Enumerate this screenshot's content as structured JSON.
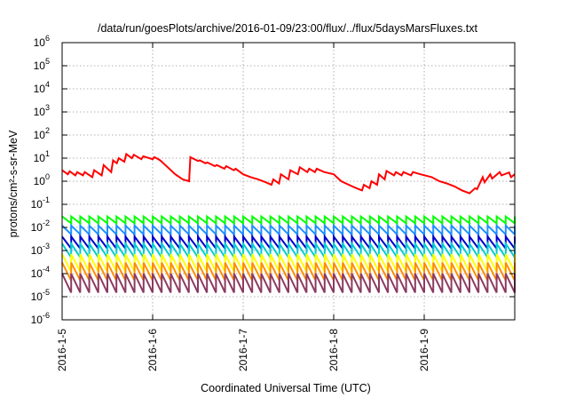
{
  "chart_data": {
    "type": "line",
    "title": "/data/run/goesPlots/archive/2016-01-09/23:00/flux/../flux/5daysMarsFluxes.txt",
    "xlabel": "Coordinated Universal Time (UTC)",
    "ylabel": "protons/cm²-s-sr-MeV",
    "yscale": "log",
    "ylim": [
      1e-06,
      1000000.0
    ],
    "xlim": [
      "2016-1-5",
      "2016-1-10"
    ],
    "grid": true,
    "legend": "none",
    "x_ticks": [
      "2016-1-5",
      "2016-1-6",
      "2016-1-7",
      "2016-1-8",
      "2016-1-9"
    ],
    "y_ticks": [
      {
        "base": "10",
        "exp": "-6"
      },
      {
        "base": "10",
        "exp": "-5"
      },
      {
        "base": "10",
        "exp": "-4"
      },
      {
        "base": "10",
        "exp": "-3"
      },
      {
        "base": "10",
        "exp": "-2"
      },
      {
        "base": "10",
        "exp": "-1"
      },
      {
        "base": "10",
        "exp": "0"
      },
      {
        "base": "10",
        "exp": "1"
      },
      {
        "base": "10",
        "exp": "2"
      },
      {
        "base": "10",
        "exp": "3"
      },
      {
        "base": "10",
        "exp": "4"
      },
      {
        "base": "10",
        "exp": "5"
      },
      {
        "base": "10",
        "exp": "6"
      }
    ],
    "series": [
      {
        "color": "#ff0000",
        "x": [
          "2016-01-05 00:00",
          "2016-01-05 01:30",
          "2016-01-05 02:00",
          "2016-01-05 03:30",
          "2016-01-05 04:00",
          "2016-01-05 05:30",
          "2016-01-05 06:00",
          "2016-01-05 08:00",
          "2016-01-05 08:30",
          "2016-01-05 10:30",
          "2016-01-05 11:00",
          "2016-01-05 13:00",
          "2016-01-05 13:30",
          "2016-01-05 14:30",
          "2016-01-05 15:00",
          "2016-01-05 16:30",
          "2016-01-05 17:00",
          "2016-01-05 18:30",
          "2016-01-05 19:00",
          "2016-01-05 21:00",
          "2016-01-05 21:30",
          "2016-01-06 00:00",
          "2016-01-06 00:30",
          "2016-01-06 02:00",
          "2016-01-06 04:00",
          "2016-01-06 06:00",
          "2016-01-06 08:00",
          "2016-01-06 09:40",
          "2016-01-06 10:00",
          "2016-01-06 12:00",
          "2016-01-06 12:30",
          "2016-01-06 14:00",
          "2016-01-06 14:30",
          "2016-01-06 16:30",
          "2016-01-06 17:00",
          "2016-01-06 19:00",
          "2016-01-06 19:30",
          "2016-01-06 21:30",
          "2016-01-06 22:00",
          "2016-01-07 00:00",
          "2016-01-07 02:00",
          "2016-01-07 04:00",
          "2016-01-07 06:00",
          "2016-01-07 07:30",
          "2016-01-07 08:00",
          "2016-01-07 09:30",
          "2016-01-07 10:00",
          "2016-01-07 12:00",
          "2016-01-07 12:30",
          "2016-01-07 14:30",
          "2016-01-07 15:00",
          "2016-01-07 17:00",
          "2016-01-07 17:30",
          "2016-01-07 19:00",
          "2016-01-07 19:30",
          "2016-01-07 21:30",
          "2016-01-08 00:00",
          "2016-01-08 02:00",
          "2016-01-08 04:00",
          "2016-01-08 06:00",
          "2016-01-08 07:30",
          "2016-01-08 08:00",
          "2016-01-08 09:30",
          "2016-01-08 10:00",
          "2016-01-08 11:30",
          "2016-01-08 12:00",
          "2016-01-08 13:30",
          "2016-01-08 14:00",
          "2016-01-08 16:00",
          "2016-01-08 16:30",
          "2016-01-08 18:00",
          "2016-01-08 18:30",
          "2016-01-08 20:30",
          "2016-01-08 21:00",
          "2016-01-08 23:00",
          "2016-01-09 02:00",
          "2016-01-09 04:00",
          "2016-01-09 06:00",
          "2016-01-09 08:00",
          "2016-01-09 10:00",
          "2016-01-09 12:00",
          "2016-01-09 13:30",
          "2016-01-09 14:00",
          "2016-01-09 15:30",
          "2016-01-09 16:00",
          "2016-01-09 17:30",
          "2016-01-09 18:00",
          "2016-01-09 20:00",
          "2016-01-09 20:30",
          "2016-01-09 22:30",
          "2016-01-09 23:00",
          "2016-01-10 00:00"
        ],
        "y": [
          3.0,
          2.0,
          2.7,
          1.8,
          2.5,
          1.8,
          2.5,
          1.5,
          3.0,
          1.8,
          5.0,
          2.5,
          8.0,
          6.0,
          10.0,
          7.0,
          15.0,
          10.0,
          14.0,
          9.0,
          12.0,
          9.0,
          11.0,
          8.0,
          4.0,
          2.0,
          1.2,
          1.0,
          11.0,
          7.5,
          8.0,
          6.0,
          6.5,
          4.5,
          5.0,
          3.5,
          4.5,
          3.0,
          3.5,
          2.0,
          1.5,
          1.2,
          0.9,
          0.7,
          1.2,
          0.8,
          2.0,
          1.2,
          3.0,
          2.0,
          4.0,
          2.5,
          3.5,
          2.5,
          3.5,
          2.5,
          2.0,
          1.0,
          0.7,
          0.5,
          0.4,
          0.7,
          0.5,
          1.0,
          0.7,
          2.0,
          1.2,
          2.8,
          1.8,
          2.5,
          1.8,
          2.5,
          1.8,
          2.5,
          2.0,
          1.5,
          1.0,
          0.8,
          0.6,
          0.4,
          0.3,
          0.5,
          0.45,
          1.5,
          0.9,
          2.0,
          1.3,
          2.5,
          1.8,
          2.4,
          1.5,
          2.0
        ]
      },
      {
        "color": "#00ff00",
        "period_hours": 2.4,
        "peak": 0.03,
        "trough": 0.015
      },
      {
        "color": "#1e90ff",
        "period_hours": 2.4,
        "peak": 0.012,
        "trough": 0.005
      },
      {
        "color": "#0000cd",
        "period_hours": 2.4,
        "peak": 0.004,
        "trough": 0.0012
      },
      {
        "color": "#00ced1",
        "period_hours": 2.4,
        "peak": 0.002,
        "trough": 0.0005
      },
      {
        "color": "#ffff00",
        "period_hours": 2.4,
        "peak": 0.0007,
        "trough": 0.00012
      },
      {
        "color": "#ff8c00",
        "period_hours": 2.4,
        "peak": 0.0003,
        "trough": 5e-05
      },
      {
        "color": "#8b3a62",
        "period_hours": 2.4,
        "peak": 0.0001,
        "trough": 1.5e-05
      }
    ]
  }
}
